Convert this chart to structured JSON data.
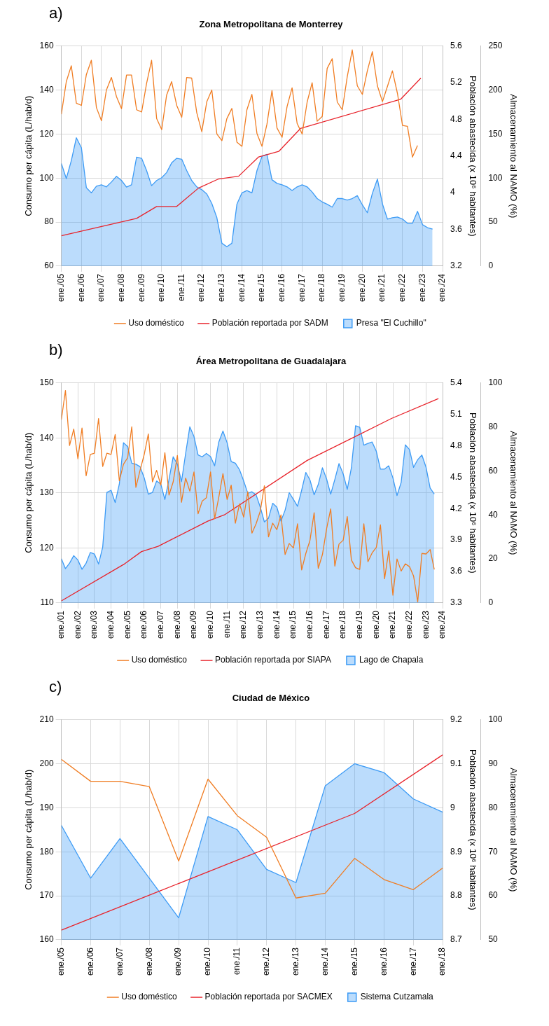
{
  "chart_data": [
    {
      "type": "line",
      "title": "Zona Metropolitana de Monterrey",
      "annotations": [
        "a)"
      ],
      "ylabel": "Consumo per cápita (L/hab/d)",
      "y2label": "Población abastecida (x 10⁶ habitantes)",
      "y3label": "Almacenamiento al NAMO (%)",
      "xlim": [
        "2005-01",
        "2024-01"
      ],
      "xticks": [
        {
          "value": "2005-01",
          "label": "ene./05"
        },
        {
          "value": "2006-01",
          "label": "ene./06"
        },
        {
          "value": "2007-01",
          "label": "ene./07"
        },
        {
          "value": "2008-01",
          "label": "ene./08"
        },
        {
          "value": "2009-01",
          "label": "ene./09"
        },
        {
          "value": "2010-01",
          "label": "ene./10"
        },
        {
          "value": "2011-01",
          "label": "ene./11"
        },
        {
          "value": "2012-01",
          "label": "ene./12"
        },
        {
          "value": "2013-01",
          "label": "ene./13"
        },
        {
          "value": "2014-01",
          "label": "ene./14"
        },
        {
          "value": "2015-01",
          "label": "ene./15"
        },
        {
          "value": "2016-01",
          "label": "ene./16"
        },
        {
          "value": "2017-01",
          "label": "ene./17"
        },
        {
          "value": "2018-01",
          "label": "ene./18"
        },
        {
          "value": "2019-01",
          "label": "ene./19"
        },
        {
          "value": "2020-01",
          "label": "ene./20"
        },
        {
          "value": "2021-01",
          "label": "ene./21"
        },
        {
          "value": "2022-01",
          "label": "ene./22"
        },
        {
          "value": "2023-01",
          "label": "ene./23"
        },
        {
          "value": "2024-01",
          "label": "ene./24"
        }
      ],
      "ylim": [
        60,
        160
      ],
      "yticks": [
        60,
        80,
        100,
        120,
        140,
        160
      ],
      "y2lim": [
        3.2,
        5.6
      ],
      "y2ticks": [
        3.2,
        3.6,
        4,
        4.4,
        4.8,
        5.2,
        5.6
      ],
      "y3lim": [
        0,
        250
      ],
      "y3ticks": [
        0,
        50,
        100,
        150,
        200,
        250
      ],
      "grid": true,
      "legend": "bottom",
      "series": [
        {
          "name": "Uso doméstico",
          "type": "line",
          "axis": "y",
          "color": "#f07d23",
          "x": [
            "2005-01",
            "2005-04",
            "2005-07",
            "2005-10",
            "2006-01",
            "2006-04",
            "2006-07",
            "2006-10",
            "2007-01",
            "2007-04",
            "2007-07",
            "2007-10",
            "2008-01",
            "2008-04",
            "2008-07",
            "2008-10",
            "2009-01",
            "2009-04",
            "2009-07",
            "2009-10",
            "2010-01",
            "2010-04",
            "2010-07",
            "2010-10",
            "2011-01",
            "2011-04",
            "2011-07",
            "2011-10",
            "2012-01",
            "2012-04",
            "2012-07",
            "2012-10",
            "2013-01",
            "2013-04",
            "2013-07",
            "2013-10",
            "2014-01",
            "2014-04",
            "2014-07",
            "2014-10",
            "2015-01",
            "2015-04",
            "2015-07",
            "2015-10",
            "2016-01",
            "2016-04",
            "2016-07",
            "2016-10",
            "2017-01",
            "2017-04",
            "2017-07",
            "2017-10",
            "2018-01",
            "2018-04",
            "2018-07",
            "2018-10",
            "2019-01",
            "2019-04",
            "2019-07",
            "2019-10",
            "2020-01",
            "2020-04",
            "2020-07",
            "2020-10",
            "2021-01",
            "2021-04",
            "2021-07",
            "2021-10",
            "2022-01",
            "2022-04",
            "2022-07",
            "2022-10"
          ],
          "values": [
            129,
            143.8,
            151,
            134,
            133,
            147,
            153.5,
            132,
            126,
            140,
            145.7,
            137,
            131.5,
            146.8,
            146.8,
            131,
            130,
            143,
            153.5,
            127,
            122,
            137.7,
            143.8,
            133,
            127.6,
            145.7,
            145.4,
            129.7,
            121,
            134.7,
            140,
            120,
            117,
            127,
            131.6,
            116.3,
            114.4,
            131,
            138,
            120.2,
            114.4,
            124.5,
            139.7,
            122.7,
            118.5,
            132.5,
            141,
            124.8,
            120,
            134.5,
            143.3,
            125.8,
            128,
            149.8,
            154.2,
            134.5,
            131,
            146,
            158.2,
            141.9,
            138,
            148.7,
            157.4,
            141.9,
            134.7,
            141.6,
            148.7,
            138.4,
            123.9,
            123.5,
            109.5,
            114.8
          ]
        },
        {
          "name": "Población reportada por SADM",
          "type": "line",
          "axis": "y2",
          "color": "#e8232b",
          "x": [
            "2005-01",
            "2008-10",
            "2009-10",
            "2010-10",
            "2011-11",
            "2012-11",
            "2013-11",
            "2014-11",
            "2015-11",
            "2016-12",
            "2021-12",
            "2022-12"
          ],
          "values": [
            3.53,
            3.72,
            3.85,
            3.85,
            4.05,
            4.15,
            4.18,
            4.39,
            4.45,
            4.7,
            5.02,
            5.25
          ]
        },
        {
          "name": "Presa \"El Cuchillo\"",
          "type": "area",
          "axis": "y3",
          "color": "#3d9bf5",
          "x": [
            "2005-01",
            "2005-04",
            "2005-07",
            "2005-10",
            "2006-01",
            "2006-04",
            "2006-07",
            "2006-10",
            "2007-01",
            "2007-04",
            "2007-07",
            "2007-10",
            "2008-01",
            "2008-04",
            "2008-07",
            "2008-10",
            "2009-01",
            "2009-04",
            "2009-07",
            "2009-10",
            "2010-01",
            "2010-04",
            "2010-07",
            "2010-10",
            "2011-01",
            "2011-04",
            "2011-07",
            "2011-10",
            "2012-01",
            "2012-04",
            "2012-07",
            "2012-10",
            "2013-01",
            "2013-04",
            "2013-07",
            "2013-10",
            "2014-01",
            "2014-04",
            "2014-07",
            "2014-10",
            "2015-01",
            "2015-04",
            "2015-07",
            "2015-10",
            "2016-01",
            "2016-04",
            "2016-07",
            "2016-10",
            "2017-01",
            "2017-04",
            "2017-07",
            "2017-10",
            "2018-01",
            "2018-04",
            "2018-07",
            "2018-10",
            "2019-01",
            "2019-04",
            "2019-07",
            "2019-10",
            "2020-01",
            "2020-04",
            "2020-07",
            "2020-10",
            "2021-01",
            "2021-04",
            "2021-07",
            "2021-10",
            "2022-01",
            "2022-04",
            "2022-07",
            "2022-10",
            "2023-01",
            "2023-04",
            "2023-07"
          ],
          "values": [
            116.6,
            99.4,
            119.8,
            145.7,
            134.4,
            89,
            83.2,
            90.7,
            92.3,
            90,
            95.5,
            102,
            97.2,
            89.7,
            92.3,
            123.7,
            122.4,
            108.5,
            91.3,
            97.2,
            100.4,
            106.2,
            117.2,
            122.4,
            121.4,
            108.5,
            97.2,
            90,
            86.8,
            81.9,
            71.2,
            55,
            25.9,
            22,
            25.9,
            70.3,
            83.2,
            85.8,
            83.2,
            108.5,
            124.7,
            126.9,
            98.1,
            93.9,
            92.3,
            90,
            85.8,
            90,
            92.3,
            90,
            84.2,
            76.7,
            72.9,
            70.3,
            67,
            76.7,
            76.7,
            75.1,
            76.7,
            80,
            69.6,
            60.6,
            82.6,
            98.8,
            70.6,
            53.4,
            55,
            55.7,
            53.4,
            48.6,
            48.6,
            62.2,
            47,
            43.7,
            42.1
          ]
        }
      ]
    },
    {
      "type": "line",
      "title": "Área Metropolitana de Guadalajara",
      "annotations": [
        "b)"
      ],
      "ylabel": "Consumo per cápita (L/hab/d)",
      "y2label": "Población abastecida (x 10⁶ habitantes)",
      "y3label": "Almacenamiento al NAMO (%)",
      "xlim": [
        "2001-01",
        "2024-01"
      ],
      "xticks": [
        {
          "value": "2001-01",
          "label": "ene./01"
        },
        {
          "value": "2002-01",
          "label": "ene./02"
        },
        {
          "value": "2003-01",
          "label": "ene./03"
        },
        {
          "value": "2004-01",
          "label": "ene./04"
        },
        {
          "value": "2005-01",
          "label": "ene./05"
        },
        {
          "value": "2006-01",
          "label": "ene./06"
        },
        {
          "value": "2007-01",
          "label": "ene./07"
        },
        {
          "value": "2008-01",
          "label": "ene./08"
        },
        {
          "value": "2009-01",
          "label": "ene./09"
        },
        {
          "value": "2010-01",
          "label": "ene./10"
        },
        {
          "value": "2011-01",
          "label": "ene./11"
        },
        {
          "value": "2012-01",
          "label": "ene./12"
        },
        {
          "value": "2013-01",
          "label": "ene./13"
        },
        {
          "value": "2014-01",
          "label": "ene./14"
        },
        {
          "value": "2015-01",
          "label": "ene./15"
        },
        {
          "value": "2016-01",
          "label": "ene./16"
        },
        {
          "value": "2017-01",
          "label": "ene./17"
        },
        {
          "value": "2018-01",
          "label": "ene./18"
        },
        {
          "value": "2019-01",
          "label": "ene./19"
        },
        {
          "value": "2020-01",
          "label": "ene./20"
        },
        {
          "value": "2021-01",
          "label": "ene./21"
        },
        {
          "value": "2022-01",
          "label": "ene./22"
        },
        {
          "value": "2023-01",
          "label": "ene./23"
        },
        {
          "value": "2024-01",
          "label": "ene./24"
        }
      ],
      "ylim": [
        110,
        150
      ],
      "yticks": [
        110,
        120,
        130,
        140,
        150
      ],
      "y2lim": [
        3.3,
        5.4
      ],
      "y2ticks": [
        3.3,
        3.6,
        3.9,
        4.2,
        4.5,
        4.8,
        5.1,
        5.4
      ],
      "y3lim": [
        0,
        100
      ],
      "y3ticks": [
        0,
        20,
        40,
        60,
        80,
        100
      ],
      "grid": true,
      "legend": "bottom",
      "series": [
        {
          "name": "Uso doméstico",
          "type": "line",
          "axis": "y",
          "color": "#f07d23",
          "x": [
            "2001-01",
            "2001-04",
            "2001-07",
            "2001-10",
            "2002-01",
            "2002-04",
            "2002-07",
            "2002-10",
            "2003-01",
            "2003-04",
            "2003-07",
            "2003-10",
            "2004-01",
            "2004-04",
            "2004-07",
            "2004-10",
            "2005-01",
            "2005-04",
            "2005-07",
            "2005-10",
            "2006-01",
            "2006-04",
            "2006-07",
            "2006-10",
            "2007-01",
            "2007-04",
            "2007-07",
            "2007-10",
            "2008-01",
            "2008-04",
            "2008-07",
            "2008-10",
            "2009-01",
            "2009-04",
            "2009-07",
            "2009-10",
            "2010-01",
            "2010-04",
            "2010-07",
            "2010-10",
            "2011-01",
            "2011-04",
            "2011-07",
            "2011-10",
            "2012-01",
            "2012-04",
            "2012-07",
            "2012-10",
            "2013-01",
            "2013-04",
            "2013-07",
            "2013-10",
            "2014-01",
            "2014-04",
            "2014-07",
            "2014-10",
            "2015-01",
            "2015-04",
            "2015-07",
            "2015-10",
            "2016-01",
            "2016-04",
            "2016-07",
            "2016-10",
            "2017-01",
            "2017-04",
            "2017-07",
            "2017-10",
            "2018-01",
            "2018-04",
            "2018-07",
            "2018-10",
            "2019-01",
            "2019-04",
            "2019-07",
            "2019-10",
            "2020-01",
            "2020-04",
            "2020-07",
            "2020-10",
            "2021-01",
            "2021-04",
            "2021-07",
            "2021-10",
            "2022-01",
            "2022-04",
            "2022-07",
            "2022-10",
            "2023-01",
            "2023-04",
            "2023-07"
          ],
          "values": [
            143.3,
            148.6,
            138.6,
            141.6,
            136.2,
            141.8,
            133.1,
            137,
            137.2,
            143.5,
            134.8,
            137.2,
            137,
            140.6,
            132.2,
            135.2,
            136.4,
            142,
            131,
            134.1,
            137,
            140.7,
            132,
            134.1,
            131.4,
            137.3,
            129.6,
            132,
            136.8,
            128.3,
            132.7,
            130.3,
            133.8,
            126.2,
            128.5,
            129.1,
            133.8,
            125.3,
            129.2,
            133.5,
            128.8,
            131.4,
            124.5,
            128,
            125.6,
            130.2,
            122.7,
            124.4,
            126.7,
            131.3,
            122,
            124.5,
            123.3,
            126,
            118.8,
            120.8,
            120,
            124.4,
            116,
            119,
            121.4,
            126.4,
            116.3,
            118.8,
            123.5,
            127.1,
            116.7,
            120.7,
            121.4,
            125.7,
            117.8,
            116.4,
            116.1,
            124.4,
            117.5,
            119.1,
            120.1,
            124.2,
            114.4,
            119.5,
            111.4,
            118,
            115.8,
            117.1,
            116.6,
            114.9,
            110.2,
            119,
            118.9,
            119.7,
            116.1
          ]
        },
        {
          "name": "Población reportada por SIAPA",
          "type": "line",
          "axis": "y2",
          "color": "#e8232b",
          "x": [
            "2001-01",
            "2004-11",
            "2005-11",
            "2006-11",
            "2009-11",
            "2010-11",
            "2015-11",
            "2020-12",
            "2023-10"
          ],
          "values": [
            3.32,
            3.675,
            3.79,
            3.84,
            4.08,
            4.14,
            4.66,
            5.06,
            5.25
          ]
        },
        {
          "name": "Lago de Chapala",
          "type": "area",
          "axis": "y3",
          "color": "#3d9bf5",
          "x": [
            "2001-01",
            "2001-04",
            "2001-07",
            "2001-10",
            "2002-01",
            "2002-04",
            "2002-07",
            "2002-10",
            "2003-01",
            "2003-04",
            "2003-07",
            "2003-10",
            "2004-01",
            "2004-04",
            "2004-07",
            "2004-10",
            "2005-01",
            "2005-04",
            "2005-07",
            "2005-10",
            "2006-01",
            "2006-04",
            "2006-07",
            "2006-10",
            "2007-01",
            "2007-04",
            "2007-07",
            "2007-10",
            "2008-01",
            "2008-04",
            "2008-07",
            "2008-10",
            "2009-01",
            "2009-04",
            "2009-07",
            "2009-10",
            "2010-01",
            "2010-04",
            "2010-07",
            "2010-10",
            "2011-01",
            "2011-04",
            "2011-07",
            "2011-10",
            "2012-01",
            "2012-04",
            "2012-07",
            "2012-10",
            "2013-01",
            "2013-04",
            "2013-07",
            "2013-10",
            "2014-01",
            "2014-04",
            "2014-07",
            "2014-10",
            "2015-01",
            "2015-04",
            "2015-07",
            "2015-10",
            "2016-01",
            "2016-04",
            "2016-07",
            "2016-10",
            "2017-01",
            "2017-04",
            "2017-07",
            "2017-10",
            "2018-01",
            "2018-04",
            "2018-07",
            "2018-10",
            "2019-01",
            "2019-04",
            "2019-07",
            "2019-10",
            "2020-01",
            "2020-04",
            "2020-07",
            "2020-10",
            "2021-01",
            "2021-04",
            "2021-07",
            "2021-10",
            "2022-01",
            "2022-04",
            "2022-07",
            "2022-10",
            "2023-01",
            "2023-04",
            "2023-07"
          ],
          "values": [
            20.1,
            15.6,
            18.1,
            21.5,
            19.5,
            15.3,
            18.1,
            22.9,
            22.2,
            17.7,
            25.4,
            50.2,
            51.2,
            45.6,
            54,
            72.8,
            71,
            63.5,
            63,
            61.9,
            56.8,
            49.4,
            50.2,
            55.4,
            54,
            47,
            56.1,
            66.4,
            63,
            55.1,
            67.9,
            80,
            75.6,
            67.2,
            66.4,
            67.9,
            66.5,
            62.3,
            73.1,
            78.1,
            72.8,
            64.2,
            63.5,
            60.5,
            55.4,
            49.8,
            50.5,
            49.1,
            43.5,
            36.8,
            38.5,
            45.3,
            43.5,
            37.2,
            42.1,
            50.1,
            47,
            43.9,
            51.2,
            59.3,
            55.8,
            49.1,
            53.8,
            61.4,
            56.3,
            49.4,
            56.1,
            63.3,
            58.6,
            51.6,
            61.4,
            80.5,
            79.8,
            71.7,
            72.5,
            73.1,
            68.9,
            60.8,
            60.8,
            62.3,
            56.8,
            48.8,
            54.7,
            71.8,
            69.7,
            61.6,
            65.1,
            67.2,
            61.6,
            52.2,
            49.5
          ]
        }
      ]
    },
    {
      "type": "line",
      "title": "Ciudad de México",
      "annotations": [
        "c)"
      ],
      "ylabel": "Consumo per cápita (L/hab/d)",
      "y2label": "Población abastecida (x 10⁶ habitantes)",
      "y3label": "Almacenamiento al NAMO (%)",
      "xlim": [
        "2005-01",
        "2018-01"
      ],
      "xticks": [
        {
          "value": "2005-01",
          "label": "ene./05"
        },
        {
          "value": "2006-01",
          "label": "ene./06"
        },
        {
          "value": "2007-01",
          "label": "ene./07"
        },
        {
          "value": "2008-01",
          "label": "ene./08"
        },
        {
          "value": "2009-01",
          "label": "ene./09"
        },
        {
          "value": "2010-01",
          "label": "ene./10"
        },
        {
          "value": "2011-01",
          "label": "ene./11"
        },
        {
          "value": "2012-01",
          "label": "ene./12"
        },
        {
          "value": "2013-01",
          "label": "ene./13"
        },
        {
          "value": "2014-01",
          "label": "ene./14"
        },
        {
          "value": "2015-01",
          "label": "ene./15"
        },
        {
          "value": "2016-01",
          "label": "ene./16"
        },
        {
          "value": "2017-01",
          "label": "ene./17"
        },
        {
          "value": "2018-01",
          "label": "ene./18"
        }
      ],
      "ylim": [
        160,
        210
      ],
      "yticks": [
        160,
        170,
        180,
        190,
        200,
        210
      ],
      "y2lim": [
        8.7,
        9.2
      ],
      "y2ticks": [
        8.7,
        8.8,
        8.9,
        9,
        9.1,
        9.2
      ],
      "y3lim": [
        50,
        100
      ],
      "y3ticks": [
        50,
        60,
        70,
        80,
        90,
        100
      ],
      "grid": true,
      "legend": "bottom",
      "series": [
        {
          "name": "Uso doméstico",
          "type": "line",
          "axis": "y",
          "color": "#f07d23",
          "x": [
            "2005-01",
            "2006-01",
            "2007-01",
            "2008-01",
            "2009-01",
            "2010-01",
            "2011-01",
            "2012-01",
            "2013-01",
            "2014-01",
            "2015-01",
            "2016-01",
            "2017-01",
            "2018-01"
          ],
          "values": [
            201,
            196,
            196,
            194.8,
            177.9,
            196.5,
            188.2,
            183.3,
            169.5,
            170.6,
            178.5,
            173.7,
            171.4,
            176.3
          ]
        },
        {
          "name": "Población reportada por SACMEX",
          "type": "line",
          "axis": "y2",
          "color": "#e8232b",
          "x": [
            "2005-01",
            "2015-01",
            "2018-01"
          ],
          "values": [
            8.722,
            8.987,
            9.12
          ]
        },
        {
          "name": "Sistema Cutzamala",
          "type": "area",
          "axis": "y3",
          "color": "#3d9bf5",
          "x": [
            "2005-01",
            "2006-01",
            "2007-01",
            "2008-01",
            "2009-01",
            "2010-01",
            "2011-01",
            "2012-01",
            "2013-01",
            "2014-01",
            "2015-01",
            "2016-01",
            "2017-01",
            "2018-01"
          ],
          "values": [
            76,
            64,
            73,
            64,
            55,
            78,
            75,
            66,
            63,
            85,
            90,
            88,
            82,
            79
          ]
        }
      ]
    }
  ]
}
